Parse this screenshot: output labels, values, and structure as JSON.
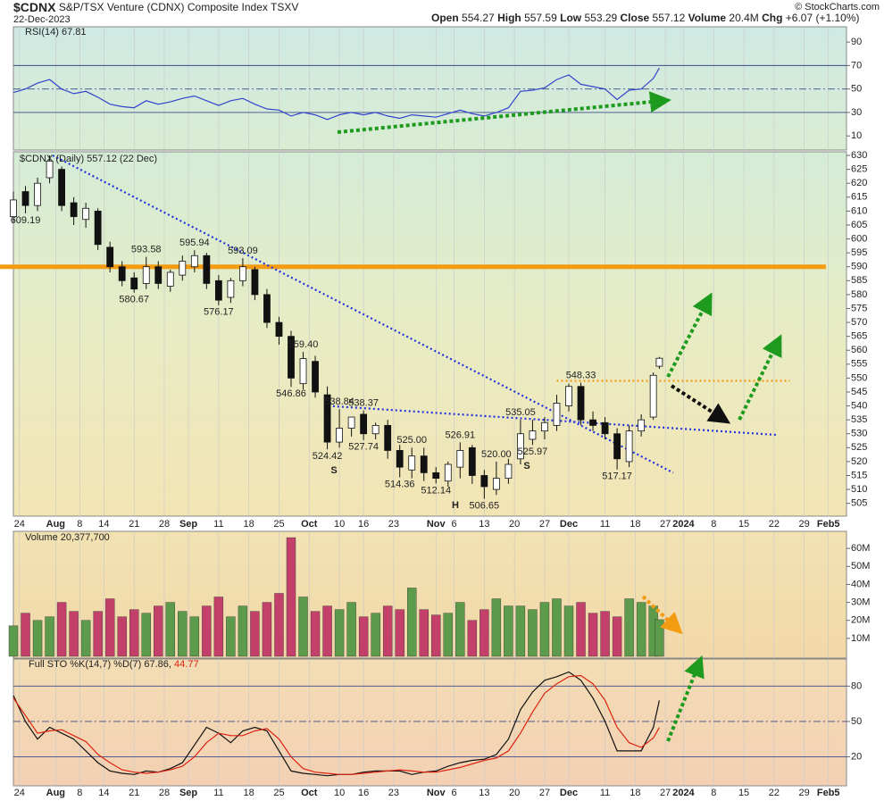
{
  "header": {
    "symbol": "$CDNX",
    "name": "S&P/TSX Venture (CDNX) Composite Index",
    "exchange": "TSXV",
    "date": "22-Dec-2023",
    "open_label": "Open",
    "high_label": "High",
    "low_label": "Low",
    "close_label": "Close",
    "volume_label": "Volume",
    "volume": "20.4M",
    "chg_label": "Chg",
    "chg": "+6.07 (+1.10%)",
    "credit": "© StockCharts.com"
  },
  "chart_data": [
    {
      "type": "line",
      "title": "RSI(14) 67.81",
      "xlim": [
        0,
        138
      ],
      "ylim": [
        -2,
        103
      ],
      "yticks": [
        90,
        70,
        50,
        30,
        10
      ],
      "reference_lines": [
        {
          "value": 70,
          "style": "solid"
        },
        {
          "value": 50,
          "style": "dashdot"
        },
        {
          "value": 30,
          "style": "solid"
        }
      ],
      "x": [
        0,
        2,
        4,
        6,
        8,
        10,
        12,
        14,
        16,
        18,
        20,
        22,
        24,
        26,
        28,
        30,
        32,
        34,
        36,
        38,
        40,
        42,
        44,
        46,
        48,
        50,
        52,
        54,
        56,
        58,
        60,
        62,
        64,
        66,
        68,
        70,
        72,
        74,
        76,
        78,
        80,
        82,
        84,
        86,
        88,
        90,
        92,
        94,
        96,
        98,
        100,
        102,
        104,
        106,
        107
      ],
      "series": [
        {
          "name": "RSI(14)",
          "color": "#3344cc",
          "values": [
            47,
            50,
            55,
            58,
            50,
            46,
            48,
            43,
            37,
            35,
            34,
            40,
            37,
            39,
            42,
            44,
            40,
            36,
            40,
            42,
            37,
            33,
            32,
            27,
            30,
            28,
            24,
            28,
            30,
            28,
            30,
            27,
            25,
            28,
            27,
            26,
            29,
            32,
            29,
            27,
            30,
            34,
            48,
            49,
            51,
            58,
            62,
            54,
            52,
            50,
            41,
            49,
            50,
            59,
            67.81
          ]
        }
      ]
    },
    {
      "type": "candlestick",
      "title": "$CDNX (Daily) 557.12 (22 Dec)",
      "xlim": [
        0,
        138
      ],
      "ylim": [
        500.4,
        631.3
      ],
      "grid": true,
      "yticks": [
        505,
        510,
        515,
        520,
        525,
        530,
        535,
        540,
        545,
        550,
        555,
        560,
        565,
        570,
        575,
        580,
        585,
        590,
        595,
        600,
        605,
        610,
        615,
        620,
        625,
        630
      ],
      "xticks": [
        {
          "value": 1,
          "label": "24"
        },
        {
          "value": 7,
          "label": "Aug"
        },
        {
          "value": 11,
          "label": "8"
        },
        {
          "value": 15,
          "label": "14"
        },
        {
          "value": 20,
          "label": "21"
        },
        {
          "value": 25,
          "label": "28"
        },
        {
          "value": 29,
          "label": "Sep"
        },
        {
          "value": 34,
          "label": "11"
        },
        {
          "value": 39,
          "label": "18"
        },
        {
          "value": 44,
          "label": "25"
        },
        {
          "value": 49,
          "label": "Oct"
        },
        {
          "value": 54,
          "label": "10"
        },
        {
          "value": 58,
          "label": "16"
        },
        {
          "value": 63,
          "label": "23"
        },
        {
          "value": 70,
          "label": "Nov"
        },
        {
          "value": 73,
          "label": "6"
        },
        {
          "value": 78,
          "label": "13"
        },
        {
          "value": 83,
          "label": "20"
        },
        {
          "value": 88,
          "label": "27"
        },
        {
          "value": 92,
          "label": "Dec"
        },
        {
          "value": 98,
          "label": "11"
        },
        {
          "value": 103,
          "label": "18"
        },
        {
          "value": 108,
          "label": "27"
        },
        {
          "value": 111,
          "label": "2024"
        },
        {
          "value": 116,
          "label": "8"
        },
        {
          "value": 121,
          "label": "15"
        },
        {
          "value": 126,
          "label": "22"
        },
        {
          "value": 131,
          "label": "29"
        },
        {
          "value": 135,
          "label": "Feb5"
        }
      ],
      "x": [
        0,
        2,
        4,
        6,
        8,
        10,
        12,
        14,
        16,
        18,
        20,
        22,
        24,
        26,
        28,
        30,
        32,
        34,
        36,
        38,
        40,
        42,
        44,
        46,
        48,
        50,
        52,
        54,
        56,
        58,
        60,
        62,
        64,
        66,
        68,
        70,
        72,
        74,
        76,
        78,
        80,
        82,
        84,
        86,
        88,
        90,
        92,
        94,
        96,
        98,
        100,
        102,
        104,
        106,
        107
      ],
      "open": [
        608,
        617,
        612,
        622,
        625,
        613,
        607,
        610,
        597,
        590,
        586,
        584,
        590,
        583,
        587,
        590,
        594,
        585,
        579,
        585,
        589,
        580,
        570,
        565,
        548,
        556,
        544,
        527,
        532,
        537,
        530,
        533,
        524,
        517,
        522,
        516,
        513,
        518,
        525,
        515,
        510,
        514,
        521,
        528,
        531,
        533,
        540,
        547,
        535,
        534,
        530,
        520,
        531,
        536,
        554.27
      ],
      "high": [
        617,
        619,
        622,
        630,
        626,
        615,
        613,
        611,
        599,
        592,
        588,
        593.58,
        592,
        589,
        594,
        595.94,
        595,
        587,
        586,
        593.09,
        590,
        582,
        572,
        567,
        559.4,
        558,
        547,
        538.84,
        536,
        538.37,
        534,
        535,
        526,
        525.0,
        525,
        518,
        520,
        526.91,
        526,
        517,
        520.0,
        521,
        535.05,
        535,
        536,
        544,
        548,
        548.33,
        538,
        536,
        532,
        533,
        537,
        552,
        557.59
      ],
      "low": [
        606,
        609.19,
        610,
        620,
        610,
        605,
        604,
        596,
        588,
        583,
        580.67,
        582,
        582,
        581,
        585,
        588,
        582,
        576.17,
        577,
        583,
        578,
        568,
        562,
        546.86,
        546,
        543,
        524.42,
        525,
        529,
        527.74,
        528,
        521,
        514.36,
        514,
        513,
        512.14,
        511,
        514,
        512,
        506.65,
        508,
        512,
        519,
        525.97,
        528,
        531,
        538,
        533,
        531,
        528,
        517.17,
        518,
        529,
        535,
        553.29
      ],
      "close": [
        614,
        612,
        620,
        628,
        612,
        608,
        611,
        598,
        590,
        585,
        582,
        590,
        584,
        588,
        592,
        594,
        584,
        578,
        585,
        590,
        580,
        570,
        565,
        550,
        557,
        545,
        527,
        532,
        536,
        530,
        533,
        524,
        518,
        522,
        516,
        514,
        519,
        524,
        515,
        511,
        514,
        519,
        530,
        531,
        534,
        541,
        547,
        535,
        533,
        530,
        521,
        531,
        535,
        551,
        557.12
      ],
      "high_labels": [
        null,
        null,
        null,
        null,
        null,
        null,
        null,
        null,
        null,
        null,
        null,
        "593.58",
        null,
        null,
        null,
        "595.94",
        null,
        null,
        null,
        "593.09",
        null,
        null,
        null,
        null,
        "559.40",
        null,
        null,
        "538.84",
        null,
        "538.37",
        null,
        null,
        null,
        "525.00",
        null,
        null,
        null,
        "526.91",
        null,
        null,
        "520.00",
        null,
        "535.05",
        null,
        null,
        null,
        null,
        "548.33",
        null,
        null,
        null,
        null,
        null,
        null,
        null
      ],
      "low_labels": [
        null,
        "609.19",
        null,
        null,
        null,
        null,
        null,
        null,
        null,
        null,
        "580.67",
        null,
        null,
        null,
        null,
        null,
        null,
        "576.17",
        null,
        null,
        null,
        null,
        null,
        "546.86",
        null,
        null,
        "524.42",
        null,
        null,
        "527.74",
        null,
        null,
        "514.36",
        null,
        null,
        "512.14",
        null,
        null,
        null,
        "506.65",
        null,
        null,
        null,
        "525.97",
        null,
        null,
        null,
        null,
        null,
        null,
        "517.17",
        null,
        null,
        null,
        null
      ],
      "levels": [
        {
          "value": 590,
          "color": "#f39c12"
        }
      ],
      "lines": [
        {
          "x": [
            6.5,
            109.3
          ],
          "y": [
            630,
            516
          ],
          "color": "#2233dd",
          "style": "dotted"
        },
        {
          "x": [
            52.2,
            126.4
          ],
          "y": [
            540,
            529.6
          ],
          "color": "#2233dd",
          "style": "dotted"
        },
        {
          "x": [
            90,
            128.6
          ],
          "y": [
            549,
            549
          ],
          "color": "#f39c12",
          "style": "dotted"
        }
      ],
      "patterns": [
        "S",
        "H",
        "S"
      ]
    },
    {
      "type": "bar",
      "title": "Volume 20,377,700",
      "xlim": [
        0,
        138
      ],
      "ylim": [
        -1000000,
        69500000
      ],
      "yticks": [
        {
          "value": 10000000,
          "label": "10M"
        },
        {
          "value": 20000000,
          "label": "20M"
        },
        {
          "value": 30000000,
          "label": "30M"
        },
        {
          "value": 40000000,
          "label": "40M"
        },
        {
          "value": 50000000,
          "label": "50M"
        },
        {
          "value": 60000000,
          "label": "60M"
        }
      ],
      "x": [
        0,
        2,
        4,
        6,
        8,
        10,
        12,
        14,
        16,
        18,
        20,
        22,
        24,
        26,
        28,
        30,
        32,
        34,
        36,
        38,
        40,
        42,
        44,
        46,
        48,
        50,
        52,
        54,
        56,
        58,
        60,
        62,
        64,
        66,
        68,
        70,
        72,
        74,
        76,
        78,
        80,
        82,
        84,
        86,
        88,
        90,
        92,
        94,
        96,
        98,
        100,
        102,
        104,
        106,
        107
      ],
      "colors": {
        "up": "#5c9a4c",
        "down": "#c2406a"
      },
      "values": [
        17000000,
        24000000,
        20000000,
        22000000,
        30000000,
        25000000,
        20000000,
        25000000,
        32000000,
        22000000,
        26000000,
        24000000,
        28000000,
        30000000,
        25000000,
        22000000,
        28000000,
        33000000,
        22000000,
        28000000,
        25000000,
        30000000,
        35000000,
        66000000,
        33000000,
        25000000,
        28000000,
        26000000,
        30000000,
        22000000,
        24000000,
        28000000,
        26000000,
        38000000,
        26000000,
        23000000,
        24000000,
        30000000,
        20000000,
        26000000,
        32000000,
        28000000,
        28000000,
        26000000,
        30000000,
        32000000,
        28000000,
        30000000,
        24000000,
        25000000,
        22000000,
        32000000,
        30000000,
        28000000,
        20377700
      ]
    },
    {
      "type": "line",
      "title": "Full STO %K(14,7) %D(7) 67.86,",
      "title_suffix": "44.77",
      "xlim": [
        0,
        138
      ],
      "ylim": [
        -4.6,
        103
      ],
      "yticks": [
        80,
        50,
        20
      ],
      "reference_lines": [
        {
          "value": 80,
          "style": "solid"
        },
        {
          "value": 50,
          "style": "dashdot"
        },
        {
          "value": 20,
          "style": "solid"
        }
      ],
      "xticks": [
        {
          "value": 1,
          "label": "24"
        },
        {
          "value": 7,
          "label": "Aug"
        },
        {
          "value": 11,
          "label": "8"
        },
        {
          "value": 15,
          "label": "14"
        },
        {
          "value": 20,
          "label": "21"
        },
        {
          "value": 25,
          "label": "28"
        },
        {
          "value": 29,
          "label": "Sep"
        },
        {
          "value": 34,
          "label": "11"
        },
        {
          "value": 39,
          "label": "18"
        },
        {
          "value": 44,
          "label": "25"
        },
        {
          "value": 49,
          "label": "Oct"
        },
        {
          "value": 54,
          "label": "10"
        },
        {
          "value": 58,
          "label": "16"
        },
        {
          "value": 63,
          "label": "23"
        },
        {
          "value": 70,
          "label": "Nov"
        },
        {
          "value": 73,
          "label": "6"
        },
        {
          "value": 78,
          "label": "13"
        },
        {
          "value": 83,
          "label": "20"
        },
        {
          "value": 88,
          "label": "27"
        },
        {
          "value": 92,
          "label": "Dec"
        },
        {
          "value": 98,
          "label": "11"
        },
        {
          "value": 103,
          "label": "18"
        },
        {
          "value": 108,
          "label": "27"
        },
        {
          "value": 111,
          "label": "2024"
        },
        {
          "value": 116,
          "label": "8"
        },
        {
          "value": 121,
          "label": "15"
        },
        {
          "value": 126,
          "label": "22"
        },
        {
          "value": 131,
          "label": "29"
        },
        {
          "value": 135,
          "label": "Feb5"
        }
      ],
      "x": [
        0,
        2,
        4,
        6,
        8,
        10,
        12,
        14,
        16,
        18,
        20,
        22,
        24,
        26,
        28,
        30,
        32,
        34,
        36,
        38,
        40,
        42,
        44,
        46,
        48,
        50,
        52,
        54,
        56,
        58,
        60,
        62,
        64,
        66,
        68,
        70,
        72,
        74,
        76,
        78,
        80,
        82,
        84,
        86,
        88,
        90,
        92,
        94,
        96,
        98,
        100,
        102,
        104,
        106,
        107
      ],
      "series": [
        {
          "name": "%K",
          "color": "#111111",
          "values": [
            72,
            50,
            35,
            45,
            40,
            35,
            25,
            15,
            8,
            6,
            5,
            8,
            7,
            10,
            15,
            30,
            45,
            40,
            32,
            42,
            45,
            42,
            25,
            8,
            6,
            5,
            4,
            5,
            5,
            7,
            8,
            8,
            8,
            5,
            7,
            8,
            12,
            15,
            17,
            18,
            22,
            35,
            60,
            75,
            85,
            88,
            92,
            85,
            70,
            50,
            25,
            25,
            25,
            45,
            67.86
          ]
        },
        {
          "name": "%D",
          "color": "#dd2211",
          "values": [
            70,
            55,
            40,
            42,
            43,
            38,
            33,
            22,
            15,
            9,
            7,
            6,
            7,
            9,
            12,
            20,
            32,
            40,
            38,
            38,
            42,
            44,
            35,
            20,
            10,
            7,
            6,
            5,
            5,
            6,
            7,
            8,
            9,
            8,
            7,
            7,
            9,
            11,
            14,
            17,
            19,
            25,
            40,
            58,
            74,
            82,
            88,
            89,
            82,
            68,
            45,
            32,
            28,
            36,
            44.77
          ]
        }
      ]
    }
  ]
}
